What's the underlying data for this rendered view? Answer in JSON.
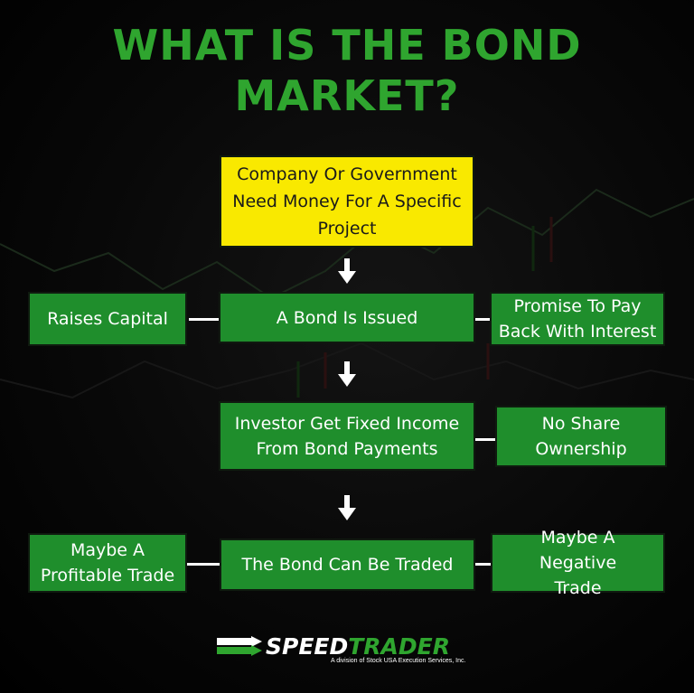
{
  "title": {
    "line1": "WHAT IS THE BOND",
    "line2": "MARKET?"
  },
  "colors": {
    "title": "#2fa52f",
    "box_green": "#1f8e2c",
    "box_yellow": "#f9e900",
    "background": "#000000",
    "connector": "#ffffff"
  },
  "flow": {
    "start": "Company Or Government Need Money For A Specific Project",
    "issued": "A Bond Is Issued",
    "raises_capital": "Raises Capital",
    "promise": "Promise To Pay Back With Interest",
    "investor": "Investor Get Fixed Income From Bond Payments",
    "no_share": "No Share Ownership",
    "traded": "The Bond Can Be Traded",
    "profitable": "Maybe A Profitable Trade",
    "negative": "Maybe A Negative Trade"
  },
  "logo": {
    "brand_part1": "SPEED",
    "brand_part2": "TRADER",
    "tagline": "A division of Stock USA Execution Services, Inc."
  },
  "icons": {
    "arrow": "down-arrow-icon",
    "logo_mark": "double-arrow-logo-icon"
  }
}
